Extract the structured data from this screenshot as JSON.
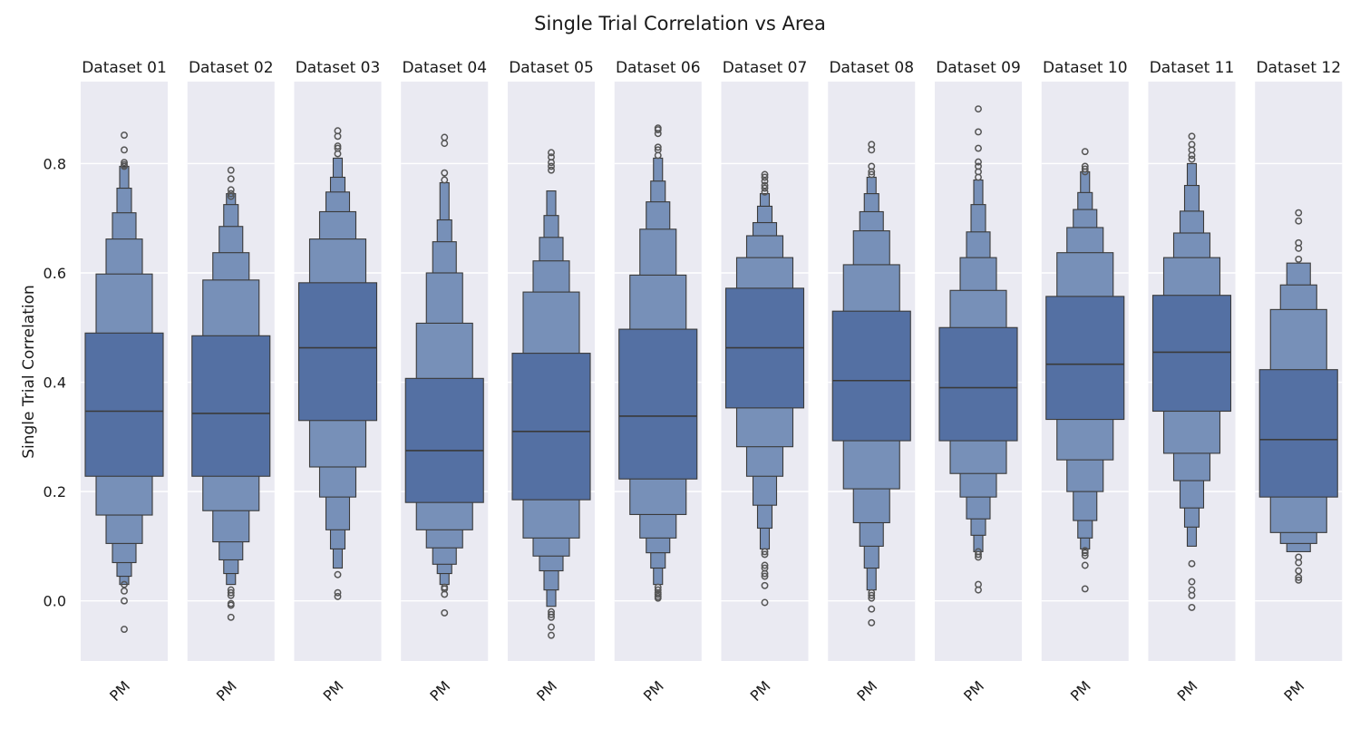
{
  "chart_data": {
    "type": "boxenplot",
    "title": "Single Trial Correlation vs Area",
    "ylabel": "Single Trial Correlation",
    "ylim": [
      -0.11,
      0.95
    ],
    "yticks": [
      "0.0",
      "0.2",
      "0.4",
      "0.6",
      "0.8"
    ],
    "ytick_values": [
      0.0,
      0.2,
      0.4,
      0.6,
      0.8
    ],
    "grid": true,
    "colors": {
      "panel_bg": "#eaeaf2",
      "grid": "#ffffff",
      "box": "#4c72b0",
      "edge": "#3a3a3a"
    },
    "category": "PM",
    "panels": [
      {
        "title": "Dataset 01",
        "median": 0.347,
        "levels": [
          [
            0.228,
            0.49
          ],
          [
            0.157,
            0.598
          ],
          [
            0.105,
            0.662
          ],
          [
            0.07,
            0.71
          ],
          [
            0.045,
            0.755
          ],
          [
            0.03,
            0.795
          ]
        ],
        "outliers": [
          0.852,
          0.825,
          0.802,
          0.798,
          0.795,
          0.03,
          0.018,
          0.0,
          -0.052
        ]
      },
      {
        "title": "Dataset 02",
        "median": 0.343,
        "levels": [
          [
            0.228,
            0.485
          ],
          [
            0.165,
            0.587
          ],
          [
            0.108,
            0.637
          ],
          [
            0.075,
            0.685
          ],
          [
            0.05,
            0.725
          ],
          [
            0.03,
            0.745
          ]
        ],
        "outliers": [
          0.788,
          0.772,
          0.752,
          0.745,
          0.74,
          0.02,
          0.015,
          0.01,
          -0.005,
          -0.008,
          -0.03
        ]
      },
      {
        "title": "Dataset 03",
        "median": 0.463,
        "levels": [
          [
            0.33,
            0.582
          ],
          [
            0.245,
            0.662
          ],
          [
            0.19,
            0.712
          ],
          [
            0.13,
            0.748
          ],
          [
            0.095,
            0.775
          ],
          [
            0.06,
            0.81
          ]
        ],
        "outliers": [
          0.86,
          0.85,
          0.832,
          0.828,
          0.818,
          0.048,
          0.015,
          0.008
        ]
      },
      {
        "title": "Dataset 04",
        "median": 0.275,
        "levels": [
          [
            0.18,
            0.407
          ],
          [
            0.13,
            0.508
          ],
          [
            0.097,
            0.6
          ],
          [
            0.067,
            0.657
          ],
          [
            0.05,
            0.697
          ],
          [
            0.03,
            0.765
          ]
        ],
        "outliers": [
          0.848,
          0.837,
          0.783,
          0.77,
          0.025,
          0.022,
          0.012,
          -0.022
        ]
      },
      {
        "title": "Dataset 05",
        "median": 0.31,
        "levels": [
          [
            0.185,
            0.453
          ],
          [
            0.115,
            0.565
          ],
          [
            0.082,
            0.622
          ],
          [
            0.055,
            0.665
          ],
          [
            0.02,
            0.705
          ],
          [
            -0.01,
            0.75
          ]
        ],
        "outliers": [
          0.82,
          0.812,
          0.802,
          0.795,
          0.788,
          -0.02,
          -0.025,
          -0.03,
          -0.048,
          -0.063
        ]
      },
      {
        "title": "Dataset 06",
        "median": 0.338,
        "levels": [
          [
            0.223,
            0.497
          ],
          [
            0.158,
            0.596
          ],
          [
            0.115,
            0.68
          ],
          [
            0.088,
            0.73
          ],
          [
            0.06,
            0.768
          ],
          [
            0.03,
            0.81
          ]
        ],
        "outliers": [
          0.865,
          0.862,
          0.855,
          0.83,
          0.825,
          0.815,
          0.025,
          0.02,
          0.015,
          0.012,
          0.008,
          0.005
        ]
      },
      {
        "title": "Dataset 07",
        "median": 0.463,
        "levels": [
          [
            0.353,
            0.572
          ],
          [
            0.282,
            0.628
          ],
          [
            0.228,
            0.668
          ],
          [
            0.175,
            0.692
          ],
          [
            0.133,
            0.722
          ],
          [
            0.095,
            0.745
          ]
        ],
        "outliers": [
          0.78,
          0.775,
          0.768,
          0.76,
          0.755,
          0.748,
          0.09,
          0.085,
          0.065,
          0.06,
          0.05,
          0.045,
          0.028,
          -0.003
        ]
      },
      {
        "title": "Dataset 08",
        "median": 0.403,
        "levels": [
          [
            0.293,
            0.53
          ],
          [
            0.205,
            0.615
          ],
          [
            0.143,
            0.677
          ],
          [
            0.1,
            0.712
          ],
          [
            0.06,
            0.745
          ],
          [
            0.02,
            0.775
          ]
        ],
        "outliers": [
          0.835,
          0.825,
          0.795,
          0.785,
          0.78,
          0.015,
          0.01,
          0.005,
          -0.015,
          -0.04
        ]
      },
      {
        "title": "Dataset 09",
        "median": 0.39,
        "levels": [
          [
            0.293,
            0.5
          ],
          [
            0.233,
            0.568
          ],
          [
            0.19,
            0.628
          ],
          [
            0.15,
            0.675
          ],
          [
            0.12,
            0.725
          ],
          [
            0.09,
            0.77
          ]
        ],
        "outliers": [
          0.9,
          0.858,
          0.828,
          0.803,
          0.795,
          0.785,
          0.775,
          0.09,
          0.085,
          0.08,
          0.03,
          0.02
        ]
      },
      {
        "title": "Dataset 10",
        "median": 0.433,
        "levels": [
          [
            0.332,
            0.557
          ],
          [
            0.258,
            0.637
          ],
          [
            0.2,
            0.683
          ],
          [
            0.147,
            0.716
          ],
          [
            0.115,
            0.747
          ],
          [
            0.095,
            0.785
          ]
        ],
        "outliers": [
          0.822,
          0.795,
          0.79,
          0.785,
          0.092,
          0.088,
          0.083,
          0.065,
          0.022
        ]
      },
      {
        "title": "Dataset 11",
        "median": 0.455,
        "levels": [
          [
            0.347,
            0.559
          ],
          [
            0.27,
            0.628
          ],
          [
            0.22,
            0.673
          ],
          [
            0.17,
            0.713
          ],
          [
            0.135,
            0.76
          ],
          [
            0.1,
            0.8
          ]
        ],
        "outliers": [
          0.85,
          0.835,
          0.825,
          0.815,
          0.808,
          0.068,
          0.035,
          0.02,
          0.01,
          -0.012
        ]
      },
      {
        "title": "Dataset 12",
        "median": 0.295,
        "levels": [
          [
            0.19,
            0.423
          ],
          [
            0.125,
            0.533
          ],
          [
            0.105,
            0.578
          ],
          [
            0.09,
            0.618
          ]
        ],
        "outliers": [
          0.71,
          0.695,
          0.655,
          0.645,
          0.625,
          0.08,
          0.07,
          0.055,
          0.043,
          0.038
        ]
      }
    ]
  }
}
